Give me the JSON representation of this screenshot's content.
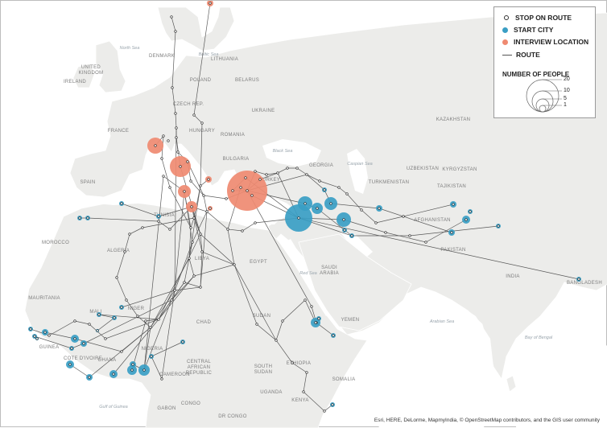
{
  "legend": {
    "stop_on_route": "STOP ON ROUTE",
    "start_city": "START CITY",
    "interview_location": "INTERVIEW LOCATION",
    "route": "ROUTE",
    "number_of_people": "NUMBER OF PEOPLE",
    "sizes": [
      "20",
      "10",
      "5",
      "1"
    ]
  },
  "colors": {
    "start_city": "#3a9ec4",
    "interview_location": "#ef8a71",
    "route": "#3f3f3f",
    "water": "#ffffff",
    "land": "#ececea"
  },
  "regions": [
    {
      "name": "IRELAND"
    },
    {
      "name": "UNITED KINGDOM"
    },
    {
      "name": "FRANCE"
    },
    {
      "name": "SPAIN"
    },
    {
      "name": "DENMARK"
    },
    {
      "name": "LITHUANIA"
    },
    {
      "name": "BELARUS"
    },
    {
      "name": "POLAND"
    },
    {
      "name": "UKRAINE"
    },
    {
      "name": "CZECH REP."
    },
    {
      "name": "HUNGARY"
    },
    {
      "name": "ROMANIA"
    },
    {
      "name": "BULGARIA"
    },
    {
      "name": "TURKEY"
    },
    {
      "name": "KAZAKHSTAN"
    },
    {
      "name": "UZBEKISTAN"
    },
    {
      "name": "KYRGYZSTAN"
    },
    {
      "name": "TURKMENISTAN"
    },
    {
      "name": "TAJIKISTAN"
    },
    {
      "name": "GEORGIA"
    },
    {
      "name": "AFGHANISTAN"
    },
    {
      "name": "PAKISTAN"
    },
    {
      "name": "INDIA"
    },
    {
      "name": "BANGLADESH"
    },
    {
      "name": "MOROCCO"
    },
    {
      "name": "ALGERIA"
    },
    {
      "name": "TUNISIA"
    },
    {
      "name": "LIBYA"
    },
    {
      "name": "EGYPT"
    },
    {
      "name": "SAUDI ARABIA"
    },
    {
      "name": "YEMEN"
    },
    {
      "name": "MAURITANIA"
    },
    {
      "name": "MALI"
    },
    {
      "name": "NIGER"
    },
    {
      "name": "CHAD"
    },
    {
      "name": "SUDAN"
    },
    {
      "name": "NIGERIA"
    },
    {
      "name": "CAMEROON"
    },
    {
      "name": "CENTRAL AFRICAN REPUBLIC"
    },
    {
      "name": "SOUTH SUDAN"
    },
    {
      "name": "ETHIOPIA"
    },
    {
      "name": "SOMALIA"
    },
    {
      "name": "KENYA"
    },
    {
      "name": "UGANDA"
    },
    {
      "name": "GABON"
    },
    {
      "name": "CONGO"
    },
    {
      "name": "DR CONGO"
    },
    {
      "name": "GHANA"
    },
    {
      "name": "COTE D'IVOIRE"
    },
    {
      "name": "GUINEA"
    }
  ],
  "seas": [
    {
      "name": "North Sea"
    },
    {
      "name": "Baltic Sea"
    },
    {
      "name": "Black Sea"
    },
    {
      "name": "Caspian Sea"
    },
    {
      "name": "Red Sea"
    },
    {
      "name": "Arabian Sea"
    },
    {
      "name": "Bay of Bengal"
    },
    {
      "name": "Gulf of Guinea"
    }
  ],
  "attribution": "Esri, HERE, DeLorme, MapmyIndia, © OpenStreetMap contributors, and the GIS user community"
}
